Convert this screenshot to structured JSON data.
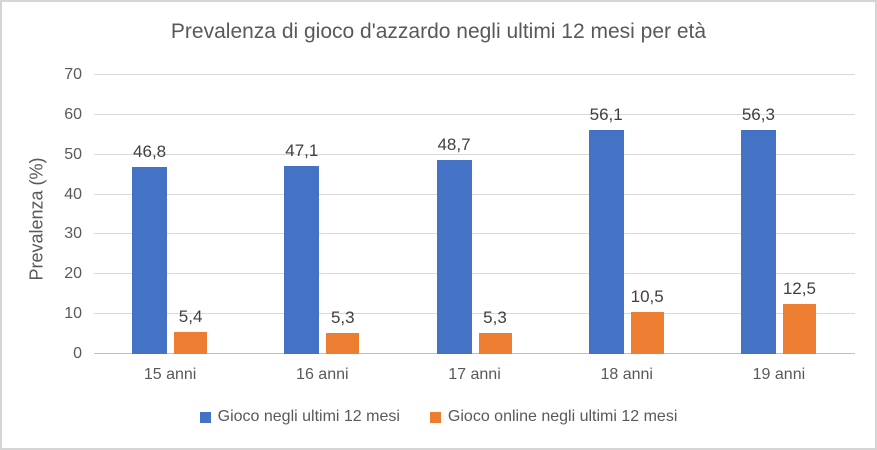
{
  "chart_data": {
    "type": "bar",
    "title": "Prevalenza di gioco d'azzardo negli ultimi 12 mesi per età",
    "xlabel": "",
    "ylabel": "Prevalenza (%)",
    "categories": [
      "15 anni",
      "16 anni",
      "17 anni",
      "18 anni",
      "19 anni"
    ],
    "series": [
      {
        "name": "Gioco negli ultimi 12 mesi",
        "color": "#4472C4",
        "values": [
          46.8,
          47.1,
          48.7,
          56.1,
          56.3
        ],
        "labels": [
          "46,8",
          "47,1",
          "48,7",
          "56,1",
          "56,3"
        ]
      },
      {
        "name": "Gioco online negli ultimi 12 mesi",
        "color": "#ED7D31",
        "values": [
          5.4,
          5.3,
          5.3,
          10.5,
          12.5
        ],
        "labels": [
          "5,4",
          "5,3",
          "5,3",
          "10,5",
          "12,5"
        ]
      }
    ],
    "ylim": [
      0,
      70
    ],
    "yticks": [
      0,
      10,
      20,
      30,
      40,
      50,
      60,
      70
    ],
    "grid": true,
    "legend_position": "bottom",
    "colors": {
      "gridline": "#D9D9D9",
      "axis_line": "#BFBFBF",
      "title_text": "#595959",
      "axis_text": "#595959",
      "data_label_text": "#404040",
      "frame_border": "#D5D5D5"
    }
  }
}
